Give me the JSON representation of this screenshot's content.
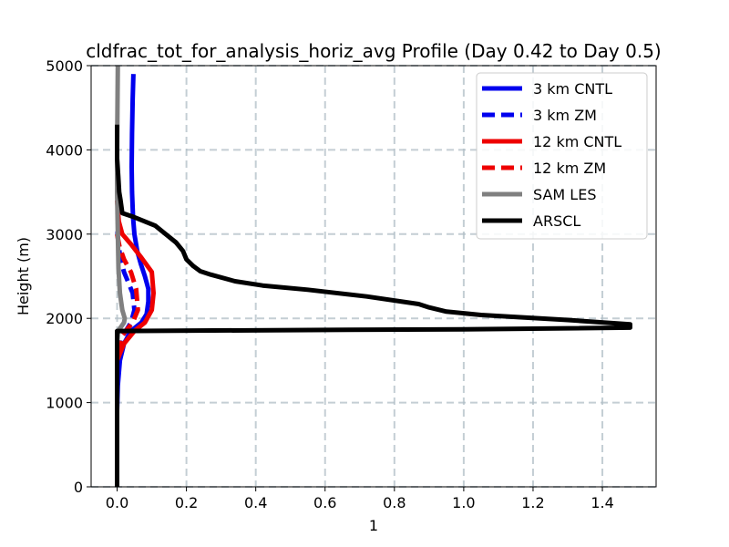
{
  "chart_data": {
    "type": "line",
    "title": "cldfrac_tot_for_analysis_horiz_avg Profile (Day 0.42 to Day 0.5)",
    "xlabel": "1",
    "ylabel": "Height (m)",
    "xlim": [
      -0.075,
      1.555
    ],
    "ylim": [
      0,
      5000
    ],
    "xticks": [
      0.0,
      0.2,
      0.4,
      0.6,
      0.8,
      1.0,
      1.2,
      1.4
    ],
    "xtick_labels": [
      "0.0",
      "0.2",
      "0.4",
      "0.6",
      "0.8",
      "1.0",
      "1.2",
      "1.4"
    ],
    "yticks": [
      0,
      1000,
      2000,
      3000,
      4000,
      5000
    ],
    "ytick_labels": [
      "0",
      "1000",
      "2000",
      "3000",
      "4000",
      "5000"
    ],
    "grid": true,
    "legend_position": "top-right",
    "series": [
      {
        "name": "3 km CNTL",
        "color": "#0000ee",
        "dash": "solid",
        "points": [
          [
            0.0,
            0
          ],
          [
            0.0,
            900
          ],
          [
            0.002,
            1200
          ],
          [
            0.008,
            1500
          ],
          [
            0.02,
            1700
          ],
          [
            0.04,
            1850
          ],
          [
            0.07,
            1950
          ],
          [
            0.085,
            2050
          ],
          [
            0.09,
            2200
          ],
          [
            0.09,
            2350
          ],
          [
            0.08,
            2500
          ],
          [
            0.068,
            2650
          ],
          [
            0.058,
            2800
          ],
          [
            0.05,
            3000
          ],
          [
            0.046,
            3200
          ],
          [
            0.043,
            3500
          ],
          [
            0.042,
            3800
          ],
          [
            0.043,
            4200
          ],
          [
            0.045,
            4600
          ],
          [
            0.047,
            4900
          ]
        ]
      },
      {
        "name": "3 km ZM",
        "color": "#0000ee",
        "dash": "dashed",
        "points": [
          [
            0.0,
            0
          ],
          [
            0.0,
            1500
          ],
          [
            0.01,
            1750
          ],
          [
            0.04,
            1950
          ],
          [
            0.05,
            2100
          ],
          [
            0.045,
            2300
          ],
          [
            0.03,
            2450
          ],
          [
            0.02,
            2550
          ],
          [
            0.01,
            2700
          ],
          [
            0.003,
            2900
          ],
          [
            0.0,
            3100
          ]
        ]
      },
      {
        "name": "12 km CNTL",
        "color": "#ee0000",
        "dash": "solid",
        "points": [
          [
            0.0,
            0
          ],
          [
            0.0,
            1500
          ],
          [
            0.02,
            1700
          ],
          [
            0.05,
            1850
          ],
          [
            0.08,
            1950
          ],
          [
            0.1,
            2100
          ],
          [
            0.105,
            2300
          ],
          [
            0.1,
            2550
          ],
          [
            0.07,
            2720
          ],
          [
            0.04,
            2880
          ],
          [
            0.015,
            3000
          ],
          [
            0.005,
            3150
          ],
          [
            0.0,
            3400
          ]
        ]
      },
      {
        "name": "12 km ZM",
        "color": "#ee0000",
        "dash": "dashed",
        "points": [
          [
            0.0,
            0
          ],
          [
            0.0,
            1600
          ],
          [
            0.015,
            1800
          ],
          [
            0.045,
            1950
          ],
          [
            0.06,
            2100
          ],
          [
            0.055,
            2350
          ],
          [
            0.04,
            2550
          ],
          [
            0.02,
            2700
          ],
          [
            0.007,
            2850
          ],
          [
            0.0,
            3000
          ]
        ]
      },
      {
        "name": "SAM LES",
        "color": "#808080",
        "dash": "solid",
        "points": [
          [
            0.0,
            0
          ],
          [
            0.0,
            1700
          ],
          [
            0.003,
            1850
          ],
          [
            0.02,
            1950
          ],
          [
            0.022,
            2000
          ],
          [
            0.015,
            2100
          ],
          [
            0.008,
            2300
          ],
          [
            0.004,
            2600
          ],
          [
            0.002,
            3000
          ],
          [
            0.0,
            3500
          ],
          [
            0.0,
            4000
          ],
          [
            0.001,
            4500
          ],
          [
            0.002,
            5000
          ]
        ]
      },
      {
        "name": "ARSCL",
        "color": "#000000",
        "dash": "solid",
        "points": [
          [
            0.0,
            0
          ],
          [
            0.0,
            1850
          ],
          [
            0.5,
            1860
          ],
          [
            1.0,
            1870
          ],
          [
            1.48,
            1890
          ],
          [
            1.48,
            1930
          ],
          [
            1.3,
            1980
          ],
          [
            1.05,
            2040
          ],
          [
            0.95,
            2080
          ],
          [
            0.9,
            2130
          ],
          [
            0.87,
            2170
          ],
          [
            0.72,
            2260
          ],
          [
            0.55,
            2340
          ],
          [
            0.42,
            2390
          ],
          [
            0.34,
            2440
          ],
          [
            0.27,
            2520
          ],
          [
            0.24,
            2560
          ],
          [
            0.22,
            2620
          ],
          [
            0.2,
            2700
          ],
          [
            0.19,
            2800
          ],
          [
            0.17,
            2900
          ],
          [
            0.14,
            3000
          ],
          [
            0.11,
            3100
          ],
          [
            0.05,
            3200
          ],
          [
            0.015,
            3250
          ],
          [
            0.01,
            3400
          ],
          [
            0.006,
            3500
          ],
          [
            0.003,
            3700
          ],
          [
            0.0,
            3900
          ],
          [
            0.0,
            4300
          ]
        ]
      }
    ]
  }
}
